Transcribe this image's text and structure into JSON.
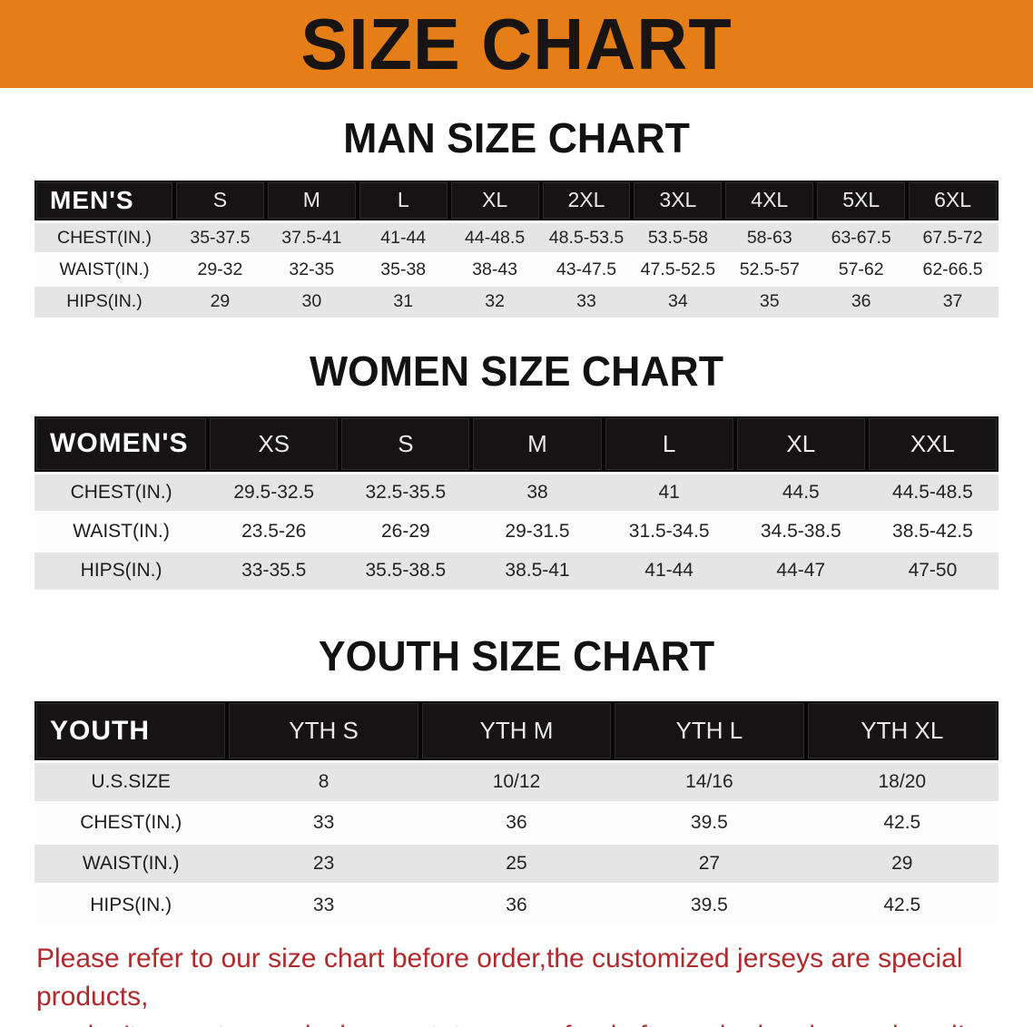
{
  "banner": {
    "title": "SIZE CHART"
  },
  "sections": [
    {
      "id": "men",
      "heading": "MAN SIZE CHART",
      "row_label": "MEN'S",
      "columns": [
        "S",
        "M",
        "L",
        "XL",
        "2XL",
        "3XL",
        "4XL",
        "5XL",
        "6XL"
      ],
      "rows": [
        {
          "label": "CHEST(IN.)",
          "values": [
            "35-37.5",
            "37.5-41",
            "41-44",
            "44-48.5",
            "48.5-53.5",
            "53.5-58",
            "58-63",
            "63-67.5",
            "67.5-72"
          ]
        },
        {
          "label": "WAIST(IN.)",
          "values": [
            "29-32",
            "32-35",
            "35-38",
            "38-43",
            "43-47.5",
            "47.5-52.5",
            "52.5-57",
            "57-62",
            "62-66.5"
          ]
        },
        {
          "label": "HIPS(IN.)",
          "values": [
            "29",
            "30",
            "31",
            "32",
            "33",
            "34",
            "35",
            "36",
            "37"
          ]
        }
      ]
    },
    {
      "id": "women",
      "heading": "WOMEN SIZE CHART",
      "row_label": "WOMEN'S",
      "columns": [
        "XS",
        "S",
        "M",
        "L",
        "XL",
        "XXL"
      ],
      "rows": [
        {
          "label": "CHEST(IN.)",
          "values": [
            "29.5-32.5",
            "32.5-35.5",
            "38",
            "41",
            "44.5",
            "44.5-48.5"
          ]
        },
        {
          "label": "WAIST(IN.)",
          "values": [
            "23.5-26",
            "26-29",
            "29-31.5",
            "31.5-34.5",
            "34.5-38.5",
            "38.5-42.5"
          ]
        },
        {
          "label": "HIPS(IN.)",
          "values": [
            "33-35.5",
            "35.5-38.5",
            "38.5-41",
            "41-44",
            "44-47",
            "47-50"
          ]
        }
      ]
    },
    {
      "id": "youth",
      "heading": "YOUTH SIZE CHART",
      "row_label": "YOUTH",
      "columns": [
        "YTH S",
        "YTH M",
        "YTH L",
        "YTH XL"
      ],
      "rows": [
        {
          "label": "U.S.SIZE",
          "values": [
            "8",
            "10/12",
            "14/16",
            "18/20"
          ]
        },
        {
          "label": "CHEST(IN.)",
          "values": [
            "33",
            "36",
            "39.5",
            "42.5"
          ]
        },
        {
          "label": "WAIST(IN.)",
          "values": [
            "23",
            "25",
            "27",
            "29"
          ]
        },
        {
          "label": "HIPS(IN.)",
          "values": [
            "33",
            "36",
            "39.5",
            "42.5"
          ]
        }
      ]
    }
  ],
  "footer": {
    "line1": "Please refer to our size chart before order,the customized jerseys are special products,",
    "line2": "we don't accept cancel, change, teturn or refund after order has been placed!"
  },
  "colors": {
    "banner_orange": "#E67E17",
    "header_black": "#161314",
    "row_gray": "#E5E5E5",
    "row_white": "#FDFDFD",
    "footer_red": "#B02A2C"
  }
}
